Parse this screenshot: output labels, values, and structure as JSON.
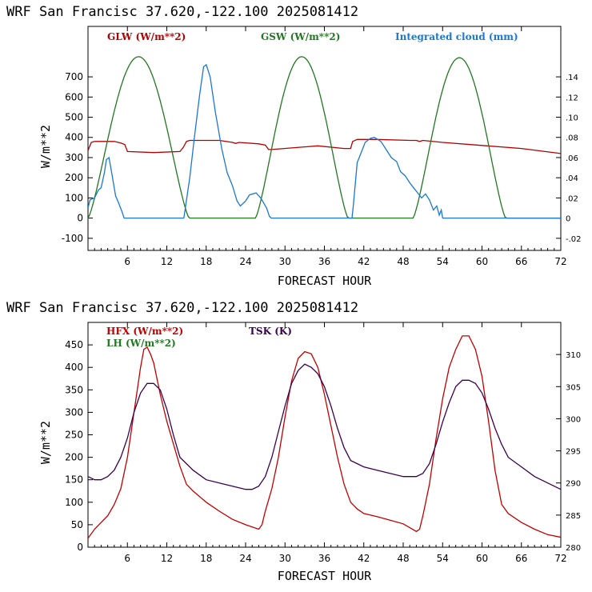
{
  "chart_data": [
    {
      "type": "line",
      "title": "WRF   San Francisc  37.620,-122.100  2025081412",
      "xlabel": "FORECAST HOUR",
      "ylabel": "W/m**2",
      "xlim": [
        0,
        72
      ],
      "ylim": [
        -160,
        950
      ],
      "y2lim": [
        -0.032,
        0.19
      ],
      "x_ticks": [
        6,
        12,
        18,
        24,
        30,
        36,
        42,
        48,
        54,
        60,
        66,
        72
      ],
      "y_ticks": [
        -100,
        0,
        100,
        200,
        300,
        400,
        500,
        600,
        700
      ],
      "y_tick_labels": [
        "-100",
        "0",
        "100",
        "200",
        "300",
        "400",
        "500",
        "600",
        "700"
      ],
      "y2_ticks": [
        -0.02,
        0,
        0.02,
        0.04,
        0.06,
        0.08,
        0.1,
        0.12,
        0.14
      ],
      "y2_tick_labels": [
        "-.02",
        "0",
        ".02",
        ".04",
        ".06",
        ".08",
        ".10",
        ".12",
        ".14"
      ],
      "grid": false,
      "series": [
        {
          "name": "GLW (W/m**2)",
          "color": "#b00000",
          "axis": "left",
          "x": [
            0,
            0.5,
            1,
            4,
            5,
            5.6,
            6,
            10,
            14,
            14.5,
            15,
            15.5,
            16,
            20,
            22,
            22.5,
            23,
            26,
            27,
            27.5,
            28,
            35,
            39,
            40,
            40.3,
            41,
            44,
            49,
            50,
            50.5,
            51,
            54,
            60,
            66,
            72
          ],
          "y": [
            335,
            375,
            380,
            380,
            372,
            365,
            330,
            325,
            330,
            350,
            380,
            385,
            385,
            385,
            375,
            370,
            375,
            368,
            362,
            340,
            340,
            358,
            345,
            345,
            380,
            390,
            390,
            385,
            385,
            380,
            385,
            375,
            360,
            345,
            320
          ]
        },
        {
          "name": "GSW (W/m**2)",
          "color": "#227722",
          "axis": "left",
          "sun_rise_set": [
            [
              0,
              15.4
            ],
            [
              25.5,
              39.6
            ],
            [
              49.5,
              63.6
            ]
          ],
          "peaks": [
            800,
            800,
            795
          ]
        },
        {
          "name": "Integrated cloud (mm)",
          "color": "#1a78d0",
          "axis": "right",
          "x": [
            0,
            0.3,
            1,
            1.6,
            2.0,
            2.5,
            2.8,
            3.2,
            3.6,
            4.2,
            4.6,
            5.2,
            5.5,
            14.6,
            15.5,
            16.2,
            17.0,
            17.6,
            18.0,
            18.6,
            19.4,
            20.4,
            21.2,
            22.0,
            22.7,
            23.2,
            24.0,
            24.6,
            25.6,
            26.3,
            27.2,
            27.6,
            27.9,
            40.2,
            40.4,
            41.0,
            41.6,
            42.2,
            43.0,
            43.6,
            44.6,
            45.4,
            46.2,
            47.0,
            47.6,
            48.3,
            49.0,
            49.6,
            50.2,
            50.8,
            51.4,
            52.0,
            52.6,
            53.1,
            53.5,
            53.8,
            54.0,
            72
          ],
          "y": [
            0.01,
            0.018,
            0.02,
            0.028,
            0.03,
            0.045,
            0.058,
            0.06,
            0.045,
            0.022,
            0.016,
            0.006,
            0,
            0,
            0.04,
            0.08,
            0.122,
            0.15,
            0.152,
            0.14,
            0.105,
            0.068,
            0.045,
            0.032,
            0.017,
            0.012,
            0.017,
            0.023,
            0.025,
            0.02,
            0.01,
            0.002,
            0,
            0,
            0.012,
            0.055,
            0.065,
            0.075,
            0.079,
            0.08,
            0.076,
            0.068,
            0.06,
            0.056,
            0.046,
            0.042,
            0.035,
            0.03,
            0.025,
            0.02,
            0.024,
            0.018,
            0.008,
            0.012,
            0.003,
            0.008,
            0,
            0
          ]
        }
      ]
    },
    {
      "type": "line",
      "title": "WRF   San Francisc  37.620,-122.100  2025081412",
      "xlabel": "FORECAST HOUR",
      "ylabel": "W/m**2",
      "xlim": [
        0,
        72
      ],
      "ylim": [
        0,
        500
      ],
      "y2lim": [
        280,
        315
      ],
      "x_ticks": [
        6,
        12,
        18,
        24,
        30,
        36,
        42,
        48,
        54,
        60,
        66,
        72
      ],
      "y_ticks": [
        0,
        50,
        100,
        150,
        200,
        250,
        300,
        350,
        400,
        450
      ],
      "y_tick_labels": [
        "0",
        "50",
        "100",
        "150",
        "200",
        "250",
        "300",
        "350",
        "400",
        "450"
      ],
      "y2_ticks": [
        280,
        285,
        290,
        295,
        300,
        305,
        310
      ],
      "y2_tick_labels": [
        "280",
        "285",
        "290",
        "295",
        "300",
        "305",
        "310"
      ],
      "grid": false,
      "series": [
        {
          "name": "HFX (W/m**2)",
          "color": "#c00000",
          "axis": "left",
          "x": [
            0,
            1,
            2,
            3,
            4,
            5,
            6,
            7,
            8,
            8.5,
            9,
            9.5,
            10,
            11,
            12,
            13,
            14,
            15,
            16,
            18,
            20,
            22,
            24,
            26,
            26.5,
            27,
            28,
            29,
            30,
            31,
            32,
            33,
            34,
            35,
            36,
            37,
            38,
            39,
            40,
            41,
            42,
            44,
            46,
            48,
            50,
            50.5,
            51,
            52,
            53,
            54,
            55,
            56,
            57,
            58,
            59,
            60,
            61,
            62,
            63,
            64,
            66,
            68,
            70,
            72
          ],
          "y": [
            20,
            40,
            55,
            70,
            95,
            130,
            200,
            300,
            400,
            440,
            445,
            430,
            410,
            340,
            280,
            230,
            180,
            140,
            125,
            100,
            80,
            62,
            50,
            40,
            50,
            80,
            130,
            200,
            290,
            370,
            420,
            435,
            430,
            400,
            340,
            270,
            200,
            140,
            100,
            85,
            75,
            68,
            60,
            52,
            35,
            40,
            70,
            140,
            240,
            330,
            400,
            440,
            470,
            470,
            440,
            380,
            280,
            170,
            95,
            75,
            55,
            40,
            28,
            22
          ]
        },
        {
          "name": "LH  (W/m**2)",
          "color": "#227722",
          "axis": "left",
          "x": [],
          "y": []
        },
        {
          "name": "TSK (K)",
          "color": "#3a0050",
          "axis": "right",
          "x": [
            0,
            1,
            2,
            3,
            4,
            5,
            6,
            7,
            8,
            9,
            10,
            11,
            12,
            13,
            14,
            16,
            18,
            20,
            22,
            24,
            25,
            26,
            27,
            28,
            29,
            30,
            31,
            32,
            33,
            34,
            35,
            36,
            37,
            38,
            39,
            40,
            42,
            44,
            46,
            48,
            49,
            50,
            51,
            52,
            53,
            54,
            55,
            56,
            57,
            58,
            59,
            60,
            61,
            62,
            63,
            64,
            66,
            68,
            70,
            72
          ],
          "y": [
            291,
            290.5,
            290.5,
            291,
            292,
            294,
            297,
            301,
            304,
            305.5,
            305.5,
            304.5,
            301.5,
            297.5,
            294,
            292,
            290.5,
            290,
            289.5,
            289,
            289,
            289.5,
            291,
            294,
            298,
            302,
            305.5,
            307.5,
            308.5,
            308,
            307,
            305,
            302,
            298.5,
            295.5,
            293.5,
            292.5,
            292,
            291.5,
            291,
            291,
            291,
            291.5,
            293,
            296,
            299.5,
            302.5,
            305,
            306,
            306,
            305.5,
            304,
            301.5,
            298.5,
            296,
            294,
            292.5,
            291,
            290,
            289
          ]
        }
      ]
    }
  ]
}
